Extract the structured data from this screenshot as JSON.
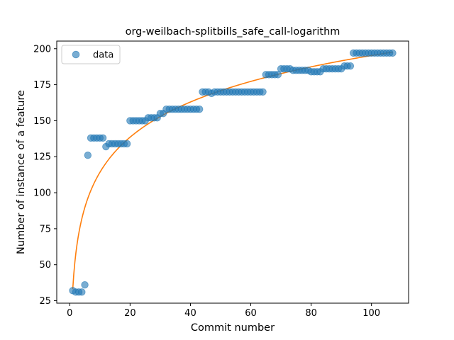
{
  "chart_data": {
    "type": "scatter",
    "title": "org-weilbach-splitbills_safe_call-logarithm",
    "xlabel": "Commit number",
    "ylabel": "Number of instance of a feature",
    "xlim": [
      -4.3,
      112.3
    ],
    "ylim": [
      23.3,
      205.3
    ],
    "xticks": [
      0,
      20,
      40,
      60,
      80,
      100
    ],
    "yticks": [
      25,
      50,
      75,
      100,
      125,
      150,
      175,
      200
    ],
    "grid": false,
    "legend": {
      "location": "upper-left",
      "entries": [
        "data"
      ]
    },
    "colors": {
      "data": "#1f77b4",
      "fit": "#ff7f0e"
    },
    "series": [
      {
        "name": "data",
        "kind": "scatter",
        "x": [
          1,
          2,
          3,
          4,
          5,
          6,
          7,
          8,
          9,
          10,
          11,
          12,
          13,
          14,
          15,
          16,
          17,
          18,
          19,
          20,
          21,
          22,
          23,
          24,
          25,
          26,
          27,
          28,
          29,
          30,
          31,
          32,
          33,
          34,
          35,
          36,
          37,
          38,
          39,
          40,
          41,
          42,
          43,
          44,
          45,
          46,
          47,
          48,
          49,
          50,
          51,
          52,
          53,
          54,
          55,
          56,
          57,
          58,
          59,
          60,
          61,
          62,
          63,
          64,
          65,
          66,
          67,
          68,
          69,
          70,
          71,
          72,
          73,
          74,
          75,
          76,
          77,
          78,
          79,
          80,
          81,
          82,
          83,
          84,
          85,
          86,
          87,
          88,
          89,
          90,
          91,
          92,
          93,
          94,
          95,
          96,
          97,
          98,
          99,
          100,
          101,
          102,
          103,
          104,
          105,
          106,
          107
        ],
        "y": [
          32,
          31,
          31,
          31,
          36,
          126,
          138,
          138,
          138,
          138,
          138,
          132,
          134,
          134,
          134,
          134,
          134,
          134,
          134,
          150,
          150,
          150,
          150,
          150,
          150,
          152,
          152,
          152,
          152,
          155,
          155,
          158,
          158,
          158,
          158,
          158,
          158,
          158,
          158,
          158,
          158,
          158,
          158,
          170,
          170,
          170,
          169,
          170,
          170,
          170,
          170,
          170,
          170,
          170,
          170,
          170,
          170,
          170,
          170,
          170,
          170,
          170,
          170,
          170,
          182,
          182,
          182,
          182,
          182,
          186,
          186,
          186,
          186,
          185,
          185,
          185,
          185,
          185,
          185,
          184,
          184,
          184,
          184,
          186,
          186,
          186,
          186,
          186,
          186,
          186,
          188,
          188,
          188,
          197,
          197,
          197,
          197,
          197,
          197,
          197,
          197,
          197,
          197,
          197,
          197,
          197,
          197
        ]
      },
      {
        "name": "",
        "kind": "line",
        "model": "logarithmic",
        "a": 33,
        "b": 35.24
      }
    ]
  }
}
